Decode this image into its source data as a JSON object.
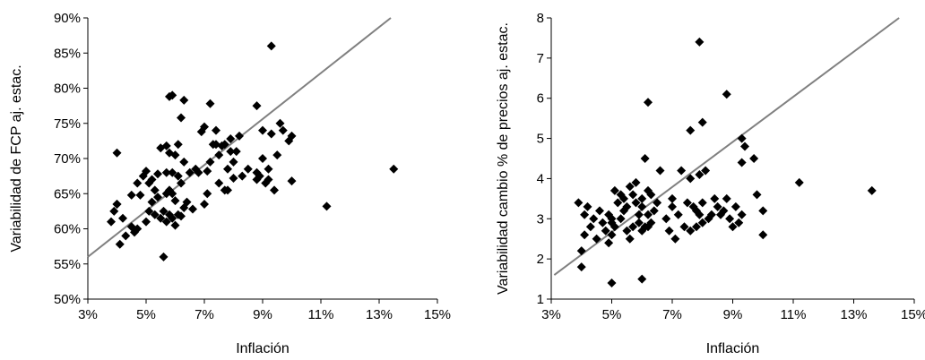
{
  "chart_data": [
    {
      "type": "scatter",
      "xlabel": "Inflación",
      "ylabel": "Variabilidad de FCP aj. estac.",
      "xlim": [
        3,
        15
      ],
      "ylim": [
        50,
        90
      ],
      "x_tick_labels": [
        "3%",
        "5%",
        "7%",
        "9%",
        "11%",
        "13%",
        "15%"
      ],
      "y_tick_labels": [
        "50%",
        "55%",
        "60%",
        "65%",
        "70%",
        "75%",
        "80%",
        "85%",
        "90%"
      ],
      "grid": false,
      "marker_color": "#000000",
      "trend_color": "#808080",
      "trendline": {
        "x": [
          3,
          13.4
        ],
        "y": [
          56,
          90
        ]
      },
      "series": [
        {
          "x": [
            3.8,
            3.9,
            4.0,
            4.0,
            4.1,
            4.2,
            4.3,
            4.5,
            4.5,
            4.6,
            4.7,
            4.7,
            4.8,
            4.9,
            5.0,
            5.0,
            5.1,
            5.1,
            5.2,
            5.2,
            5.3,
            5.3,
            5.4,
            5.4,
            5.5,
            5.5,
            5.6,
            5.6,
            5.7,
            5.7,
            5.7,
            5.8,
            5.8,
            5.8,
            5.9,
            5.9,
            5.9,
            6.0,
            6.0,
            6.0,
            6.1,
            6.1,
            6.1,
            6.2,
            6.2,
            6.3,
            6.3,
            6.4,
            6.5,
            6.6,
            6.7,
            6.8,
            7.0,
            7.0,
            7.1,
            7.1,
            7.2,
            7.2,
            7.3,
            7.4,
            7.5,
            7.5,
            7.6,
            7.7,
            7.7,
            7.8,
            7.8,
            7.9,
            7.9,
            8.0,
            8.0,
            8.1,
            8.2,
            8.3,
            8.5,
            8.8,
            8.8,
            8.9,
            9.0,
            9.0,
            9.1,
            9.2,
            9.2,
            9.3,
            9.4,
            9.5,
            9.6,
            9.7,
            9.9,
            10.0,
            10.0,
            11.2,
            13.5,
            8.8,
            9.3,
            4.0,
            6.3,
            5.7,
            5.8,
            5.9,
            6.2,
            6.9,
            7.4
          ],
          "y": [
            61,
            62.5,
            70.8,
            63.5,
            57.8,
            61.5,
            59,
            60.3,
            64.8,
            59.5,
            66.5,
            60,
            64.8,
            67.5,
            68.2,
            61,
            62.5,
            66.5,
            67,
            63.8,
            62,
            65.5,
            64.5,
            67.8,
            61.5,
            71.5,
            56,
            62.5,
            61,
            65,
            68,
            62,
            70.8,
            78.8,
            61.5,
            65,
            68,
            60.5,
            64,
            70.5,
            62,
            67.5,
            72,
            61.8,
            66.5,
            63,
            69.5,
            63.8,
            68,
            62.8,
            68.5,
            68,
            63.5,
            74.5,
            65,
            68.2,
            69.5,
            77.8,
            72,
            74,
            66.5,
            70.5,
            71.8,
            65.5,
            72,
            65.5,
            68.5,
            71,
            72.8,
            67.2,
            69.5,
            71,
            73.2,
            67.5,
            68.5,
            67,
            68,
            67.5,
            70,
            74,
            66.5,
            67,
            68.5,
            73.5,
            65.5,
            70.5,
            75,
            74,
            72.5,
            73.2,
            66.8,
            63.2,
            68.5,
            77.5,
            86,
            63.5,
            78.3,
            71.8,
            65.5,
            79,
            75.8,
            73.8,
            72
          ]
        }
      ]
    },
    {
      "type": "scatter",
      "xlabel": "Inflación",
      "ylabel": "Variabilidad cambio % de precios aj. estac.",
      "xlim": [
        3,
        15
      ],
      "ylim": [
        1,
        8
      ],
      "x_tick_labels": [
        "3%",
        "5%",
        "7%",
        "9%",
        "11%",
        "13%",
        "15%"
      ],
      "y_tick_labels": [
        "1",
        "2",
        "3",
        "4",
        "5",
        "6",
        "7",
        "8"
      ],
      "grid": false,
      "marker_color": "#000000",
      "trend_color": "#808080",
      "trendline": {
        "x": [
          3.1,
          14.5
        ],
        "y": [
          1.6,
          8
        ]
      },
      "series": [
        {
          "x": [
            3.9,
            4.0,
            4.1,
            4.1,
            4.2,
            4.3,
            4.4,
            4.5,
            4.6,
            4.7,
            4.8,
            4.9,
            4.9,
            5.0,
            5.0,
            5.0,
            5.1,
            5.1,
            5.2,
            5.3,
            5.3,
            5.4,
            5.4,
            5.5,
            5.5,
            5.6,
            5.6,
            5.7,
            5.7,
            5.8,
            5.8,
            5.9,
            5.9,
            6.0,
            6.0,
            6.0,
            6.1,
            6.1,
            6.2,
            6.2,
            6.2,
            6.3,
            6.3,
            6.4,
            6.5,
            6.6,
            6.8,
            6.9,
            7.0,
            7.0,
            7.1,
            7.2,
            7.3,
            7.4,
            7.5,
            7.6,
            7.6,
            7.7,
            7.8,
            7.8,
            7.9,
            7.9,
            8.0,
            8.0,
            8.1,
            8.2,
            8.3,
            8.4,
            8.5,
            8.6,
            8.7,
            8.8,
            8.9,
            9.0,
            9.1,
            9.2,
            9.3,
            9.3,
            9.4,
            9.7,
            9.8,
            10.0,
            10.0,
            11.2,
            13.6,
            7.9,
            6.2,
            8.8,
            5.0,
            4.0,
            6.0,
            7.6,
            8.0,
            9.3
          ],
          "y": [
            3.4,
            2.2,
            2.6,
            3.1,
            3.3,
            2.8,
            3.0,
            2.5,
            3.2,
            2.9,
            2.7,
            3.1,
            2.4,
            3.0,
            2.9,
            2.6,
            3.7,
            2.8,
            3.4,
            3.0,
            3.6,
            3.2,
            3.5,
            2.7,
            3.3,
            3.8,
            2.5,
            3.6,
            2.8,
            3.9,
            3.4,
            2.9,
            3.1,
            3.5,
            2.7,
            3.3,
            4.5,
            2.8,
            3.7,
            3.1,
            2.8,
            3.6,
            2.9,
            3.2,
            3.4,
            4.2,
            3.0,
            2.7,
            3.3,
            3.5,
            2.5,
            3.1,
            4.2,
            2.8,
            3.4,
            4.0,
            2.7,
            3.3,
            3.2,
            2.8,
            3.1,
            4.1,
            3.4,
            2.9,
            4.2,
            3.0,
            3.1,
            3.5,
            3.3,
            3.1,
            3.2,
            3.5,
            3.0,
            2.8,
            3.3,
            2.9,
            4.4,
            3.1,
            4.8,
            4.5,
            3.6,
            2.6,
            3.2,
            3.9,
            3.7,
            7.4,
            5.9,
            6.1,
            1.4,
            1.8,
            1.5,
            5.2,
            5.4,
            5.0
          ]
        }
      ]
    }
  ]
}
